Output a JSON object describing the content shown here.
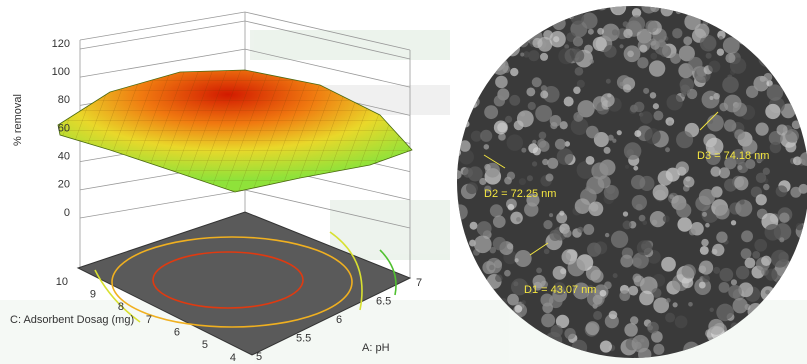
{
  "surface_plot": {
    "z_label": "% removal",
    "z_ticks": [
      0,
      20,
      40,
      60,
      80,
      100,
      120
    ],
    "x_label": "C: Adsorbent Dosag (mg)",
    "x_ticks": [
      10,
      9,
      8,
      7,
      6,
      5,
      4
    ],
    "y_label": "A: pH",
    "y_ticks": [
      5,
      5.5,
      6,
      6.5,
      7
    ]
  },
  "sem_image": {
    "labels": [
      "D2 = 72.25 nm",
      "D3 = 74.18 nm",
      "D1 = 43.07 nm"
    ]
  }
}
